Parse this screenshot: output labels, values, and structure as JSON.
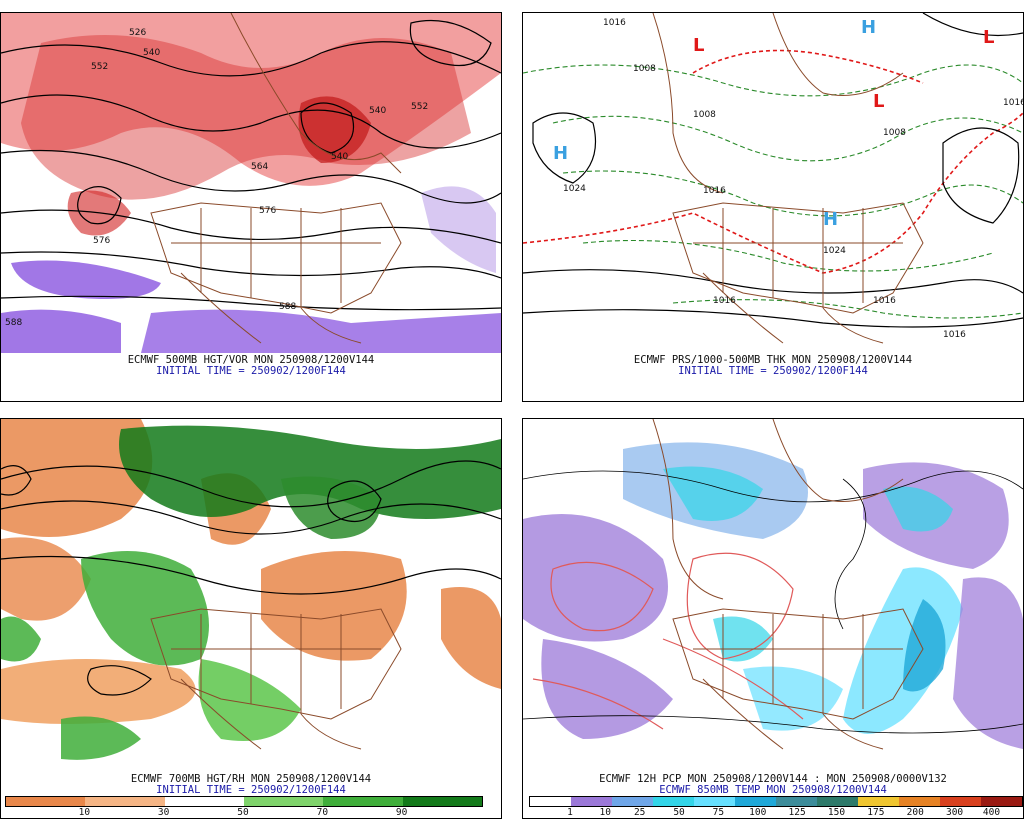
{
  "panels": {
    "top_left": {
      "caption1": "ECMWF 500MB HGT/VOR MON 250908/1200V144",
      "caption2": "INITIAL TIME = 250902/1200F144",
      "contour_labels": [
        "526",
        "540",
        "552",
        "540",
        "552",
        "564",
        "576",
        "576",
        "588",
        "540",
        "588"
      ]
    },
    "top_right": {
      "caption1": "ECMWF PRS/1000-500MB THK MON 250908/1200V144",
      "caption2": "INITIAL TIME = 250902/1200F144",
      "contour_labels": [
        "1016",
        "1008",
        "1008",
        "1024",
        "1016",
        "1016",
        "1008",
        "1016",
        "1024",
        "1016",
        "1016"
      ],
      "pressure_centers": [
        "L",
        "L",
        "L",
        "H",
        "H",
        "H"
      ]
    },
    "bottom_left": {
      "caption1": "ECMWF 700MB HGT/RH MON 250908/1200V144",
      "caption2": "INITIAL TIME = 250902/1200F144",
      "colorbar_ticks": [
        "10",
        "30",
        "50",
        "70",
        "90"
      ],
      "colors": [
        "#e8874a",
        "#f5b585",
        "#ffffff",
        "#7fd36b",
        "#3fae3a",
        "#137a1a"
      ]
    },
    "bottom_right": {
      "caption1": "ECMWF 12H PCP MON 250908/1200V144 : MON 250908/0000V132",
      "caption2": "ECMWF 850MB TEMP MON 250908/1200V144",
      "colorbar_ticks": [
        "1",
        "10",
        "25",
        "50",
        "75",
        "100",
        "125",
        "150",
        "175",
        "200",
        "300",
        "400"
      ],
      "colors": [
        "#ffffff",
        "#9b78d8",
        "#6fa6e8",
        "#33d5e8",
        "#66e0ff",
        "#1fa8d8",
        "#3c8c9a",
        "#2d7a6a",
        "#f0c630",
        "#e68224",
        "#d8401e",
        "#9a1a12"
      ]
    }
  }
}
